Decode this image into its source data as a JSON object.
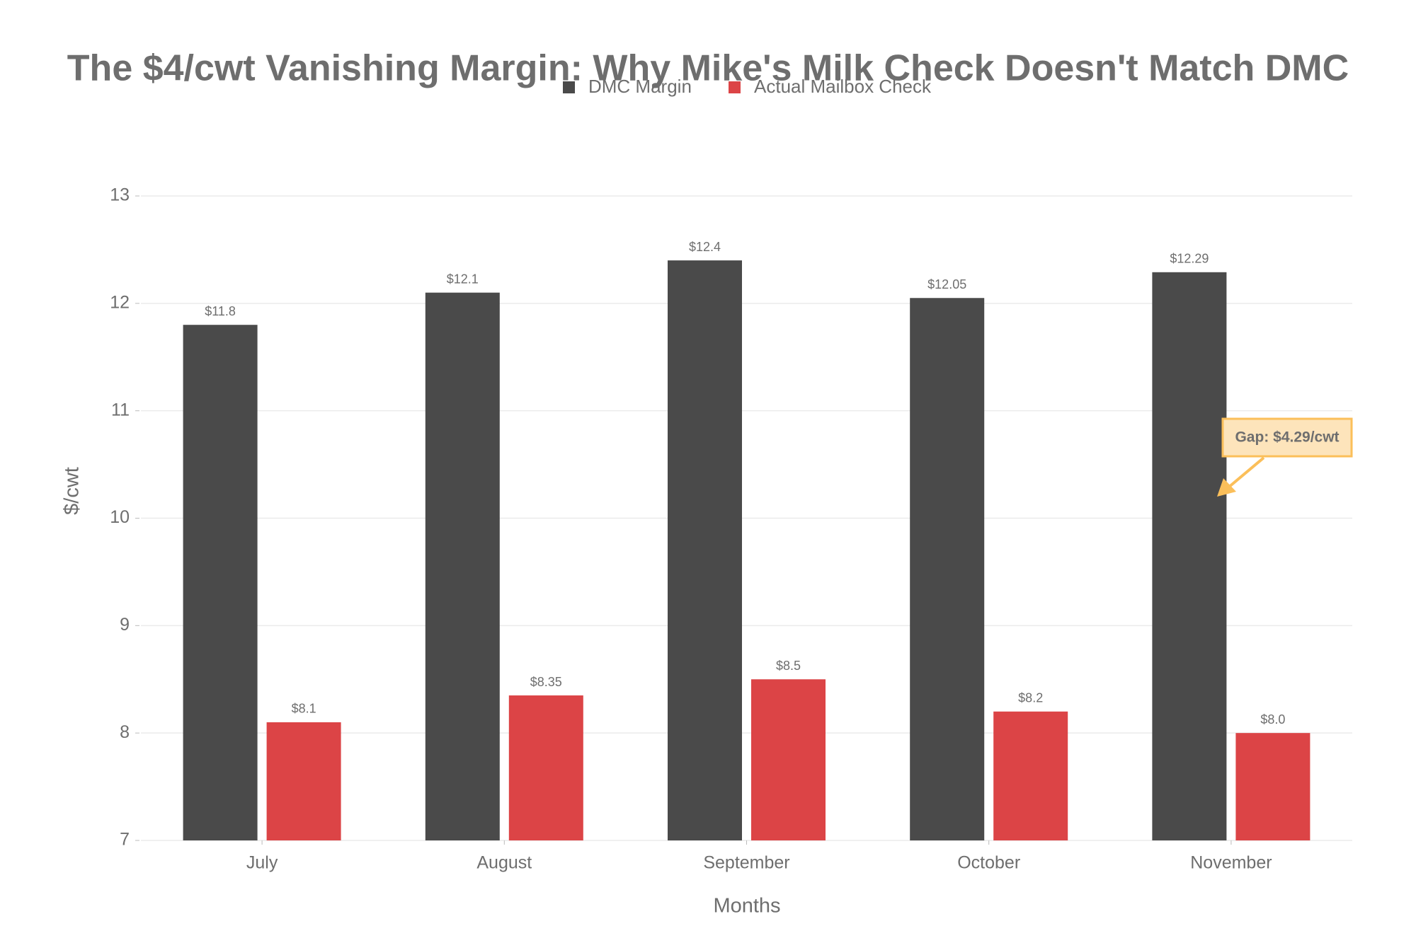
{
  "chart_data": {
    "type": "bar",
    "title": "The $4/cwt Vanishing Margin: Why Mike's Milk Check Doesn't Match DMC",
    "x_label": "Months",
    "y_label": "$/cwt",
    "categories": [
      "July",
      "August",
      "September",
      "October",
      "November"
    ],
    "series": [
      {
        "name": "DMC Margin",
        "color": "#4a4a4a",
        "values": [
          11.8,
          12.1,
          12.4,
          12.05,
          12.29
        ],
        "value_labels": [
          "$11.8",
          "$12.1",
          "$12.4",
          "$12.05",
          "$12.29"
        ]
      },
      {
        "name": "Actual Mailbox Check",
        "color": "#dc4446",
        "values": [
          8.1,
          8.35,
          8.5,
          8.2,
          8.0
        ],
        "value_labels": [
          "$8.1",
          "$8.35",
          "$8.5",
          "$8.2",
          "$8.0"
        ]
      }
    ],
    "ylim": [
      7,
      13
    ],
    "yticks": [
      7,
      8,
      9,
      10,
      11,
      12,
      13
    ],
    "grid": true,
    "legend": "top",
    "annotations": [
      {
        "text": "Gap: $4.29/cwt"
      }
    ]
  }
}
